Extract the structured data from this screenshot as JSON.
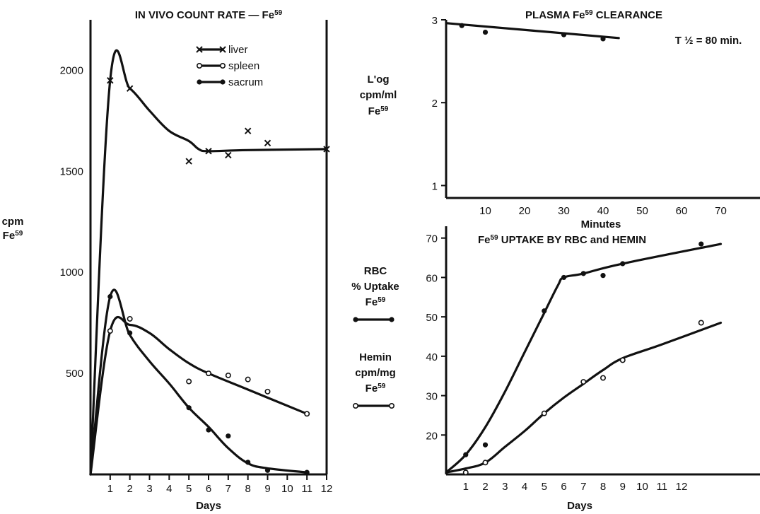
{
  "chart_data": [
    {
      "type": "line",
      "title": "IN VIVO COUNT RATE — Fe59",
      "xlabel": "Days",
      "ylabel_lines": [
        "cpm",
        "Fe59"
      ],
      "xlim": [
        0,
        12
      ],
      "ylim": [
        0,
        2250
      ],
      "xticks": [
        "1",
        "2",
        "3",
        "4",
        "5",
        "6",
        "7",
        "8",
        "9",
        "10",
        "11",
        "12"
      ],
      "yticks": [
        500,
        1000,
        1500,
        2000
      ],
      "legend": {
        "position": "top-center",
        "entries": [
          "liver",
          "spleen",
          "sacrum"
        ]
      },
      "series": [
        {
          "name": "liver",
          "marker": "x",
          "points": [
            [
              1,
              1950
            ],
            [
              2,
              1910
            ],
            [
              5,
              1550
            ],
            [
              6,
              1600
            ],
            [
              7,
              1580
            ],
            [
              8,
              1700
            ],
            [
              9,
              1640
            ],
            [
              12,
              1610
            ]
          ],
          "curve": [
            [
              0,
              0
            ],
            [
              1,
              1950
            ],
            [
              2,
              1910
            ],
            [
              3,
              1800
            ],
            [
              4,
              1700
            ],
            [
              5,
              1650
            ],
            [
              5.5,
              1610
            ],
            [
              6,
              1600
            ],
            [
              8,
              1605
            ],
            [
              12,
              1610
            ]
          ]
        },
        {
          "name": "spleen",
          "marker": "open-circle",
          "points": [
            [
              1,
              710
            ],
            [
              2,
              770
            ],
            [
              5,
              460
            ],
            [
              6,
              500
            ],
            [
              7,
              490
            ],
            [
              8,
              470
            ],
            [
              9,
              410
            ],
            [
              11,
              300
            ]
          ],
          "curve": [
            [
              0,
              0
            ],
            [
              1,
              710
            ],
            [
              2,
              740
            ],
            [
              3,
              700
            ],
            [
              4,
              620
            ],
            [
              5,
              550
            ],
            [
              6,
              500
            ],
            [
              8,
              420
            ],
            [
              11,
              300
            ]
          ]
        },
        {
          "name": "sacrum",
          "marker": "filled-circle",
          "points": [
            [
              1,
              880
            ],
            [
              2,
              700
            ],
            [
              5,
              330
            ],
            [
              6,
              220
            ],
            [
              7,
              190
            ],
            [
              8,
              60
            ],
            [
              9,
              20
            ],
            [
              11,
              10
            ]
          ],
          "curve": [
            [
              0,
              0
            ],
            [
              1,
              880
            ],
            [
              2,
              690
            ],
            [
              3,
              560
            ],
            [
              4,
              450
            ],
            [
              5,
              330
            ],
            [
              6,
              235
            ],
            [
              7,
              130
            ],
            [
              8,
              55
            ],
            [
              9,
              30
            ],
            [
              11,
              10
            ]
          ]
        }
      ]
    },
    {
      "type": "line",
      "title": "PLASMA Fe59 CLEARANCE",
      "xlabel": "Minutes",
      "ylabel_lines": [
        "L'og",
        "cpm/ml",
        "Fe59"
      ],
      "annotation": "T ½ = 80 min.",
      "xlim": [
        0,
        80
      ],
      "ylim": [
        0.85,
        3.0
      ],
      "xticks": [
        10,
        20,
        30,
        40,
        50,
        60,
        70
      ],
      "yticks": [
        1,
        2,
        3
      ],
      "series": [
        {
          "name": "",
          "marker": "filled-circle",
          "points": [
            [
              4,
              2.93
            ],
            [
              10,
              2.85
            ],
            [
              30,
              2.82
            ],
            [
              40,
              2.77
            ]
          ],
          "curve": [
            [
              0,
              2.96
            ],
            [
              44,
              2.78
            ]
          ]
        }
      ]
    },
    {
      "type": "line",
      "title": "Fe59 UPTAKE BY RBC and HEMIN",
      "xlabel": "Days",
      "xlim": [
        0,
        16
      ],
      "ylim": [
        10,
        73
      ],
      "xticks": [
        "1",
        "2",
        "3",
        "4",
        "5",
        "6",
        "7",
        "8",
        "9",
        "10",
        "11",
        "12"
      ],
      "yticks": [
        20,
        30,
        40,
        50,
        60,
        70
      ],
      "legend": {
        "position": "left",
        "entries": [
          {
            "lines": [
              "RBC",
              "% Uptake",
              "Fe59"
            ],
            "marker": "filled-circle"
          },
          {
            "lines": [
              "Hemin",
              "cpm/mg",
              "Fe59"
            ],
            "marker": "open-circle"
          }
        ]
      },
      "series": [
        {
          "name": "RBC",
          "marker": "filled-circle",
          "points": [
            [
              1,
              15
            ],
            [
              2,
              17.5
            ],
            [
              5,
              51.5
            ],
            [
              6,
              60
            ],
            [
              7,
              61
            ],
            [
              8,
              60.5
            ],
            [
              9,
              63.5
            ],
            [
              13,
              68.5
            ]
          ],
          "curve": [
            [
              0,
              10.5
            ],
            [
              1,
              15
            ],
            [
              2,
              22
            ],
            [
              3,
              31
            ],
            [
              4,
              41
            ],
            [
              5,
              51
            ],
            [
              5.7,
              58
            ],
            [
              6,
              60
            ],
            [
              7,
              61
            ],
            [
              9,
              63.5
            ],
            [
              14,
              68.5
            ]
          ]
        },
        {
          "name": "Hemin",
          "marker": "open-circle",
          "points": [
            [
              1,
              10.5
            ],
            [
              2,
              13
            ],
            [
              5,
              25.5
            ],
            [
              7,
              33.5
            ],
            [
              8,
              34.5
            ],
            [
              9,
              39
            ],
            [
              13,
              48.5
            ]
          ],
          "curve": [
            [
              0,
              10.5
            ],
            [
              1,
              11.5
            ],
            [
              2,
              13
            ],
            [
              3,
              17
            ],
            [
              4,
              21
            ],
            [
              5,
              25.5
            ],
            [
              6,
              29.5
            ],
            [
              7,
              33
            ],
            [
              8,
              36.5
            ],
            [
              9,
              39.5
            ],
            [
              11,
              43
            ],
            [
              14,
              48.5
            ]
          ]
        }
      ]
    }
  ]
}
